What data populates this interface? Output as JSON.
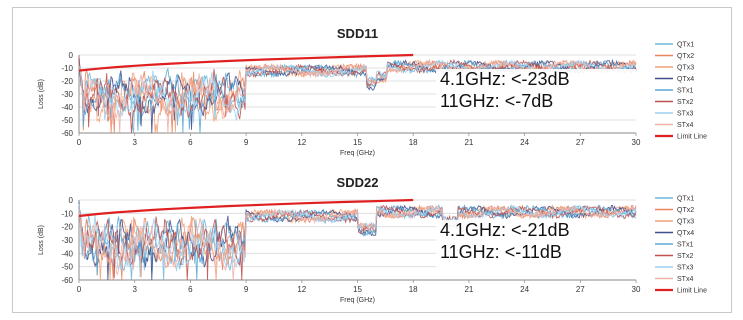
{
  "chart_data": [
    {
      "type": "line",
      "title": "SDD11",
      "xlabel": "Freq (GHz)",
      "ylabel": "Loss (dB)",
      "xlim": [
        0,
        30
      ],
      "ylim": [
        -60,
        0
      ],
      "xticks": [
        0,
        3,
        6,
        9,
        12,
        15,
        18,
        21,
        24,
        27,
        30
      ],
      "yticks": [
        0,
        -10,
        -20,
        -30,
        -40,
        -50,
        -60
      ],
      "grid": true,
      "legend": "right",
      "series": [
        {
          "name": "QTx1",
          "color": "#6fb7dd"
        },
        {
          "name": "QTx2",
          "color": "#e8845f"
        },
        {
          "name": "QTx3",
          "color": "#f2a37a"
        },
        {
          "name": "QTx4",
          "color": "#3f4f8c"
        },
        {
          "name": "STx1",
          "color": "#5aa9d6"
        },
        {
          "name": "STx2",
          "color": "#c0504d"
        },
        {
          "name": "STx3",
          "color": "#9bd1ef"
        },
        {
          "name": "STx4",
          "color": "#f0b0a8"
        },
        {
          "name": "Limit Line",
          "color": "#e02020",
          "x": [
            0,
            1,
            2,
            3,
            4,
            5,
            6,
            8,
            10,
            12,
            14,
            16,
            18
          ],
          "y": [
            -12,
            -10.5,
            -9.3,
            -8.3,
            -7.4,
            -6.6,
            -5.9,
            -4.6,
            -3.5,
            -2.5,
            -1.6,
            -0.8,
            0
          ]
        }
      ],
      "annotations": [
        "4.1GHz: <-23dB",
        "11GHz: <-7dB"
      ]
    },
    {
      "type": "line",
      "title": "SDD22",
      "xlabel": "Freq (GHz)",
      "ylabel": "Loss (dB)",
      "xlim": [
        0,
        30
      ],
      "ylim": [
        -60,
        0
      ],
      "xticks": [
        0,
        3,
        6,
        9,
        12,
        15,
        18,
        21,
        24,
        27,
        30
      ],
      "yticks": [
        0,
        -10,
        -20,
        -30,
        -40,
        -50,
        -60
      ],
      "grid": true,
      "legend": "right",
      "series": [
        {
          "name": "QTx1",
          "color": "#6fb7dd"
        },
        {
          "name": "QTx2",
          "color": "#e8845f"
        },
        {
          "name": "QTx3",
          "color": "#f2a37a"
        },
        {
          "name": "QTx4",
          "color": "#3f4f8c"
        },
        {
          "name": "STx1",
          "color": "#5aa9d6"
        },
        {
          "name": "STx2",
          "color": "#c0504d"
        },
        {
          "name": "STx3",
          "color": "#9bd1ef"
        },
        {
          "name": "STx4",
          "color": "#f0b0a8"
        },
        {
          "name": "Limit Line",
          "color": "#e02020",
          "x": [
            0,
            1,
            2,
            3,
            4,
            5,
            6,
            8,
            10,
            12,
            14,
            16,
            18
          ],
          "y": [
            -12,
            -10.5,
            -9.3,
            -8.3,
            -7.4,
            -6.6,
            -5.9,
            -4.6,
            -3.5,
            -2.5,
            -1.6,
            -0.8,
            0
          ]
        }
      ],
      "annotations": [
        "4.1GHz: <-21dB",
        "11GHz: <-11dB"
      ]
    }
  ]
}
